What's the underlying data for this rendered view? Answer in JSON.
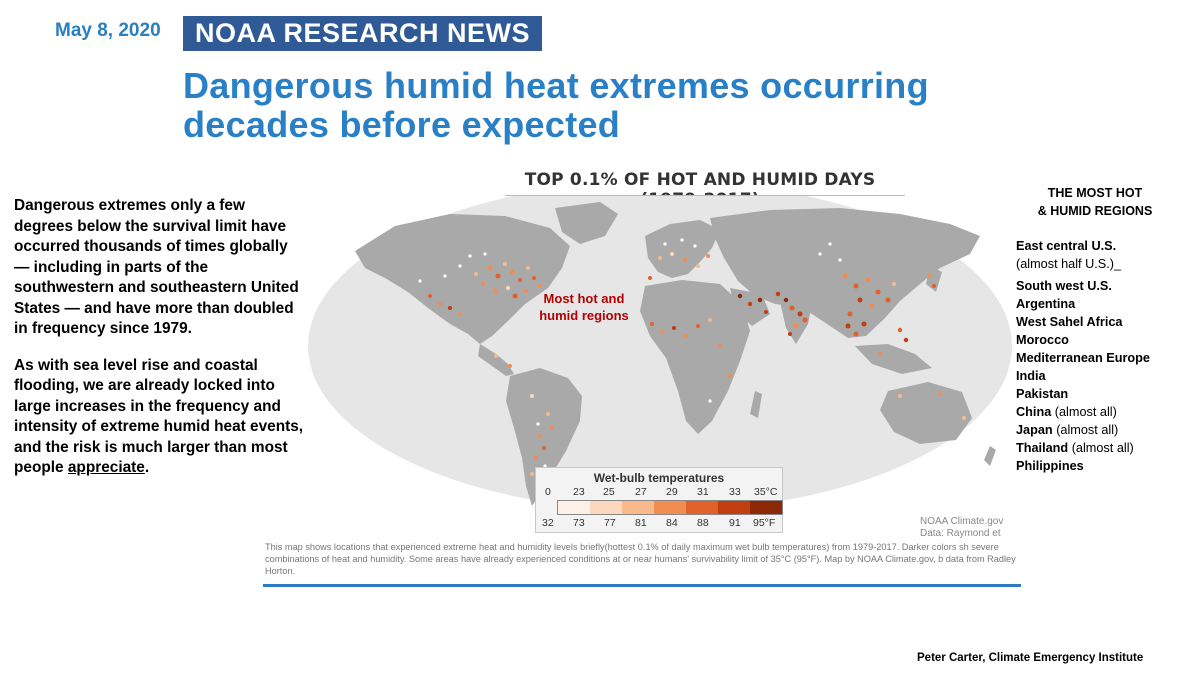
{
  "header": {
    "date": "May 8, 2020",
    "banner": "NOAA RESEARCH NEWS",
    "headline_line1": "Dangerous humid heat extremes occurring",
    "headline_line2": "decades before expected"
  },
  "body_text": {
    "paragraph1": "Dangerous extremes only a few degrees below the survival  limit have occurred thousands of times globally — including in parts of the southwestern and southeastern United States — and have more than doubled in frequency since 1979.",
    "paragraph2_before": "As with sea level rise and coastal flooding, we are already locked into large increases in the frequency and intensity of extreme humid heat events, and the risk is much larger than most people ",
    "paragraph2_underlined": "appreciate",
    "paragraph2_after": "."
  },
  "map": {
    "title": "TOP 0.1% OF HOT AND HUMID DAYS (1979-2017)",
    "annotation": "Most hot and humid regions",
    "legend_title": "Wet-bulb temperatures",
    "celsius_ticks": [
      "0",
      "23",
      "25",
      "27",
      "29",
      "31",
      "33",
      "35°C"
    ],
    "fahrenheit_ticks": [
      "32",
      "73",
      "77",
      "81",
      "84",
      "88",
      "91",
      "95°F"
    ],
    "colors": {
      "land": "#a9a9a9",
      "ocean": "#e6e6e6",
      "legend_scale": [
        "#fdf0e6",
        "#fcd9be",
        "#f9b98c",
        "#f28d52",
        "#e0622a",
        "#c03e10",
        "#8c2806"
      ]
    },
    "credit_line1": "NOAA Climate.gov",
    "credit_line2": "Data: Raymond et",
    "caption": "This map shows locations that experienced extreme heat and humidity levels briefly(hottest 0.1% of daily maximum wet bulb temperatures) from 1979-2017. Darker colors sh severe combinations of heat and humidity. Some areas have already experienced conditions at or near humans' survivability limit of 35°C (95°F). Map by NOAA Climate.gov, b data from Radley Horton."
  },
  "regions": {
    "title_line1": "THE MOST HOT",
    "title_line2": "& HUMID REGIONS",
    "items": [
      {
        "name": "East central U.S.",
        "note": "(almost half U.S.)_"
      },
      {
        "name": "South west U.S.",
        "note": ""
      },
      {
        "name": "Argentina",
        "note": ""
      },
      {
        "name": "West Sahel Africa",
        "note": ""
      },
      {
        "name": "Morocco",
        "note": ""
      },
      {
        "name": "Mediterranean Europe",
        "note": ""
      },
      {
        "name": "India",
        "note": ""
      },
      {
        "name": "Pakistan",
        "note": ""
      },
      {
        "name": "China",
        "note": "(almost all)"
      },
      {
        "name": "Japan",
        "note": "(almost all)"
      },
      {
        "name": "Thailand",
        "note": "(almost all)"
      },
      {
        "name": "Philippines",
        "note": ""
      }
    ]
  },
  "footer": {
    "author": "Peter Carter, Climate Emergency Institute"
  }
}
